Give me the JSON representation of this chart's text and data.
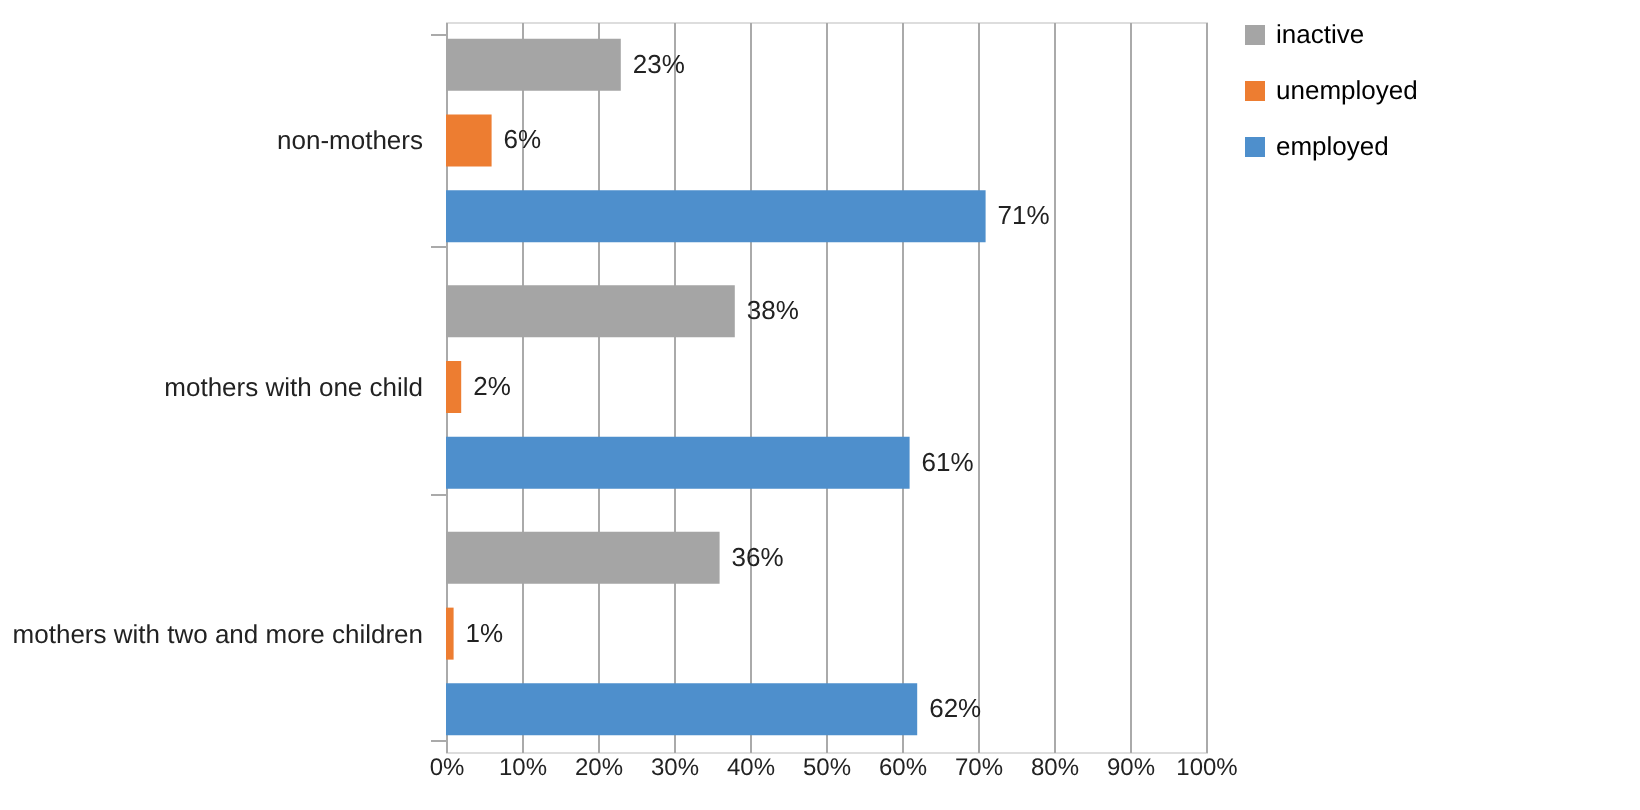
{
  "chart_data": {
    "type": "bar",
    "orientation": "horizontal",
    "categories": [
      "non-mothers",
      "mothers with one child",
      "mothers with two and more children"
    ],
    "series": [
      {
        "name": "inactive",
        "color": "#a5a5a5",
        "values": [
          23,
          38,
          36
        ],
        "value_labels": [
          "23%",
          "38%",
          "36%"
        ]
      },
      {
        "name": "unemployed",
        "color": "#ed7d31",
        "values": [
          6,
          2,
          1
        ],
        "value_labels": [
          "6%",
          "2%",
          "1%"
        ]
      },
      {
        "name": "employed",
        "color": "#4e8fcc",
        "values": [
          71,
          61,
          62
        ],
        "value_labels": [
          "71%",
          "61%",
          "62%"
        ]
      }
    ],
    "xlim": [
      0,
      100
    ],
    "xticks": [
      {
        "value": 0,
        "label": "0%"
      },
      {
        "value": 10,
        "label": "10%"
      },
      {
        "value": 20,
        "label": "20%"
      },
      {
        "value": 30,
        "label": "30%"
      },
      {
        "value": 40,
        "label": "40%"
      },
      {
        "value": 50,
        "label": "50%"
      },
      {
        "value": 60,
        "label": "60%"
      },
      {
        "value": 70,
        "label": "70%"
      },
      {
        "value": 80,
        "label": "80%"
      },
      {
        "value": 90,
        "label": "90%"
      },
      {
        "value": 100,
        "label": "100%"
      }
    ],
    "grid": "x",
    "legend": "right"
  }
}
